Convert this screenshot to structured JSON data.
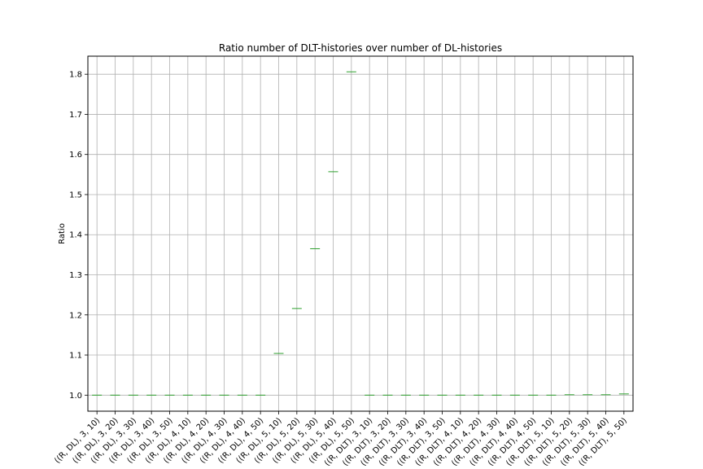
{
  "chart_data": {
    "type": "box",
    "title": "Ratio number of DLT-histories over number of DL-histories",
    "xlabel": "",
    "ylabel": "Ratio",
    "ylim": [
      0.96,
      1.845
    ],
    "yticks": [
      1.0,
      1.1,
      1.2,
      1.3,
      1.4,
      1.5,
      1.6,
      1.7,
      1.8
    ],
    "grid": true,
    "median_color": "#2ca02c",
    "categories": [
      "((R, DL), 3, 10)",
      "((R, DL), 3, 20)",
      "((R, DL), 3, 30)",
      "((R, DL), 3, 40)",
      "((R, DL), 3, 50)",
      "((R, DL), 4, 10)",
      "((R, DL), 4, 20)",
      "((R, DL), 4, 30)",
      "((R, DL), 4, 40)",
      "((R, DL), 4, 50)",
      "((R, DL), 5, 10)",
      "((R, DL), 5, 20)",
      "((R, DL), 5, 30)",
      "((R, DL), 5, 40)",
      "((R, DL), 5, 50)",
      "((R, DLT), 3, 10)",
      "((R, DLT), 3, 20)",
      "((R, DLT), 3, 30)",
      "((R, DLT), 3, 40)",
      "((R, DLT), 3, 50)",
      "((R, DLT), 4, 10)",
      "((R, DLT), 4, 20)",
      "((R, DLT), 4, 30)",
      "((R, DLT), 4, 40)",
      "((R, DLT), 4, 50)",
      "((R, DLT), 5, 10)",
      "((R, DLT), 5, 20)",
      "((R, DLT), 5, 30)",
      "((R, DLT), 5, 40)",
      "((R, DLT), 5, 50)"
    ],
    "values": [
      1.0,
      1.0,
      1.0,
      1.0,
      1.0,
      1.0,
      1.0,
      1.0,
      1.0,
      1.0,
      1.104,
      1.216,
      1.365,
      1.557,
      1.806,
      1.0,
      1.0,
      1.0,
      1.0,
      1.0,
      1.0,
      1.0,
      1.0,
      1.0,
      1.0,
      1.0,
      1.001,
      1.001,
      1.001,
      1.003
    ]
  }
}
